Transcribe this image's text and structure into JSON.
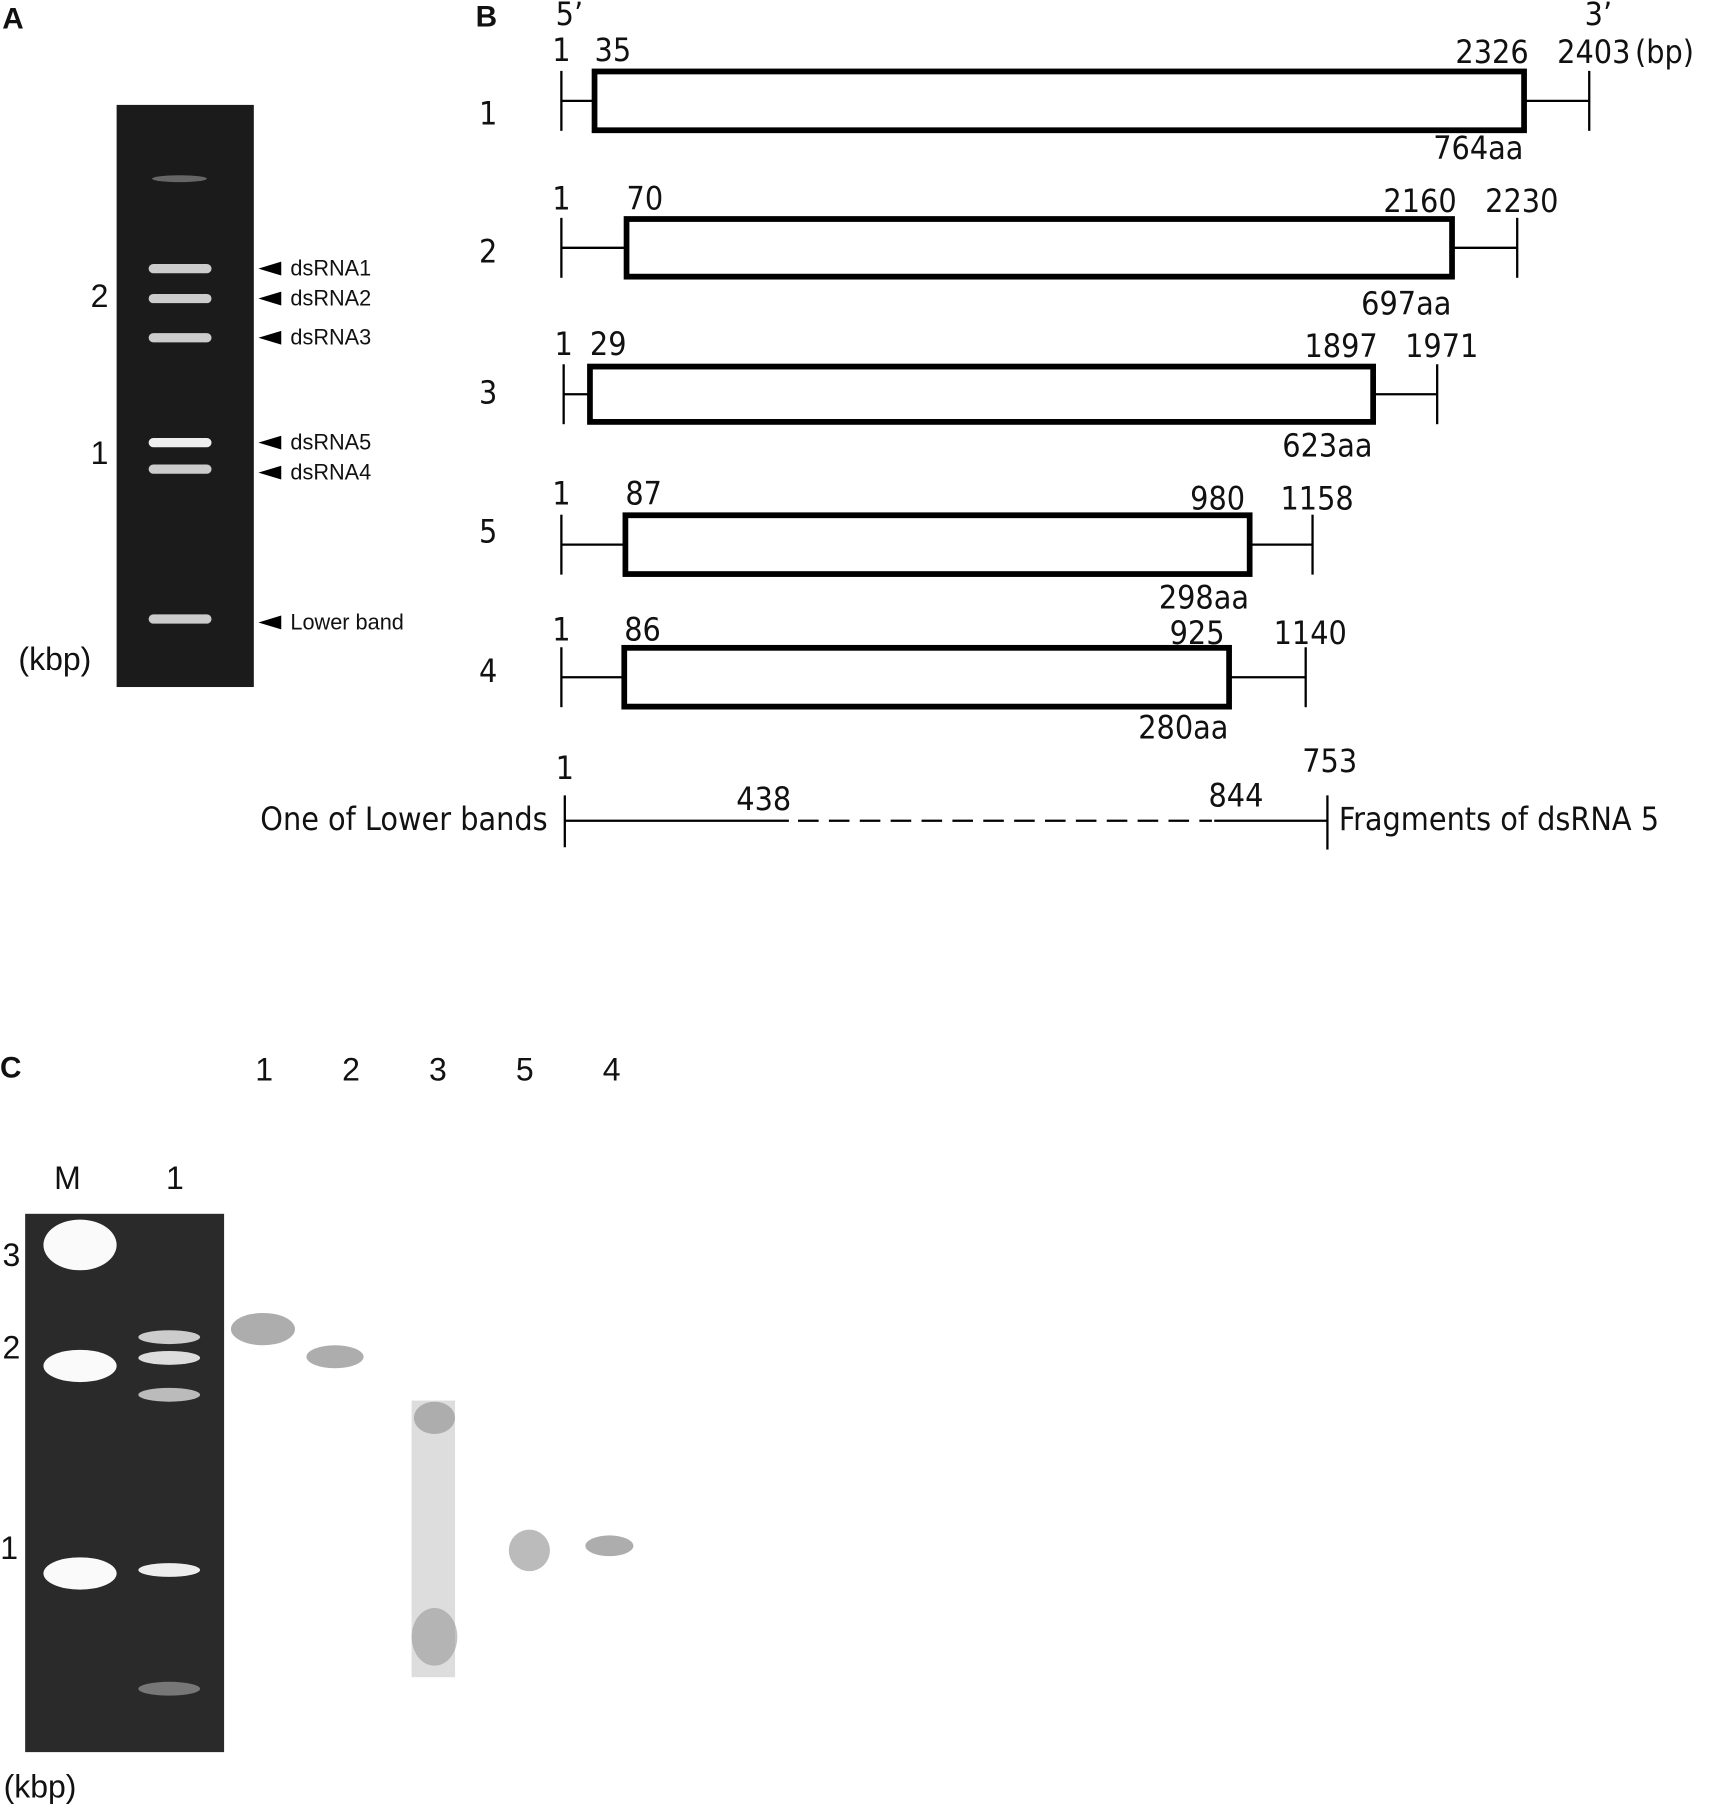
{
  "panel_a": {
    "label": "A",
    "scale_labels": [
      "2",
      "1"
    ],
    "unit": "(kbp)",
    "bands": [
      "dsRNA1",
      "dsRNA2",
      "dsRNA3",
      "dsRNA5",
      "dsRNA4",
      "Lower band"
    ]
  },
  "panel_b": {
    "label": "B",
    "five_prime": "5’",
    "three_prime": "3’",
    "unit": "(bp)",
    "segments": [
      {
        "name": "1",
        "start": "1",
        "orf_start": "35",
        "orf_end": "2326",
        "end": "2403",
        "protein": "764aa"
      },
      {
        "name": "2",
        "start": "1",
        "orf_start": "70",
        "orf_end": "2160",
        "end": "2230",
        "protein": "697aa"
      },
      {
        "name": "3",
        "start": "1",
        "orf_start": "29",
        "orf_end": "1897",
        "end": "1971",
        "protein": "623aa"
      },
      {
        "name": "5",
        "start": "1",
        "orf_start": "87",
        "orf_end": "980",
        "end": "1158",
        "protein": "298aa"
      },
      {
        "name": "4",
        "start": "1",
        "orf_start": "86",
        "orf_end": "925",
        "end": "1140",
        "protein": "280aa"
      }
    ],
    "lower": {
      "label": "One of Lower bands",
      "start": "1",
      "left_mark": "438",
      "right_mark": "844",
      "end": "753",
      "note": "Fragments of dsRNA 5"
    }
  },
  "panel_c": {
    "label": "C",
    "gel_lanes": [
      "M",
      "1"
    ],
    "scale_labels": [
      "3",
      "2",
      "1"
    ],
    "unit": "(kbp)",
    "blot_lanes": [
      "1",
      "2",
      "3",
      "5",
      "4"
    ]
  }
}
